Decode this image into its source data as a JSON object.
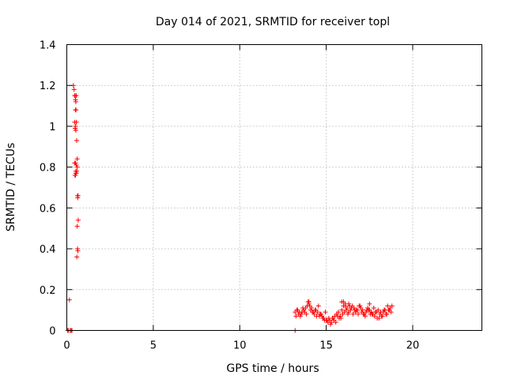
{
  "chart_data": {
    "type": "scatter",
    "title": "Day 014 of 2021, SRMTID for receiver topl",
    "xlabel": "GPS time / hours",
    "ylabel": "SRMTID / TECUs",
    "xlim": [
      0,
      24
    ],
    "ylim": [
      0,
      1.4
    ],
    "xticks": [
      0,
      5,
      10,
      15,
      20
    ],
    "yticks": [
      0,
      0.2,
      0.4,
      0.6,
      0.8,
      1,
      1.2,
      1.4
    ],
    "xtick_labels": [
      "0",
      "5",
      "10",
      "15",
      "20"
    ],
    "ytick_labels": [
      "0",
      "0.2",
      "0.4",
      "0.6",
      "0.8",
      "1",
      "1.2",
      "1.4"
    ],
    "grid": true,
    "marker": "+",
    "series": [
      {
        "name": "SRMTID",
        "color": "#ff0000",
        "x": [
          0.05,
          0.1,
          0.15,
          0.2,
          0.25,
          0.3,
          0.38,
          0.42,
          0.45,
          0.48,
          0.5,
          0.52,
          0.55,
          0.5,
          0.53,
          0.45,
          0.5,
          0.55,
          0.48,
          0.52,
          0.57,
          0.6,
          0.5,
          0.55,
          0.6,
          0.58,
          0.52,
          0.47,
          0.5,
          0.55,
          0.62,
          0.65,
          0.63,
          0.66,
          0.6,
          0.62,
          0.64,
          0.58,
          0.45,
          0.52,
          13.2,
          13.3,
          13.4,
          13.5,
          13.6,
          13.7,
          13.8,
          13.9,
          14.0,
          14.1,
          14.2,
          14.3,
          14.4,
          14.5,
          14.6,
          14.7,
          14.8,
          14.9,
          15.0,
          15.1,
          15.2,
          15.3,
          15.4,
          15.5,
          15.6,
          15.7,
          15.8,
          15.9,
          16.0,
          16.1,
          16.2,
          16.3,
          16.4,
          16.5,
          16.6,
          16.7,
          16.8,
          16.9,
          17.0,
          17.1,
          17.2,
          17.3,
          17.4,
          17.5,
          17.6,
          17.7,
          17.8,
          17.9,
          18.0,
          18.1,
          18.2,
          18.3,
          18.4,
          18.5,
          18.6,
          18.7,
          18.8,
          13.25,
          13.45,
          13.65,
          13.85,
          14.05,
          14.25,
          14.45,
          14.65,
          14.85,
          15.05,
          15.25,
          15.45,
          15.65,
          15.85,
          16.05,
          16.25,
          16.45,
          16.65,
          16.85,
          17.05,
          17.25,
          17.45,
          17.65,
          17.85,
          18.05,
          18.25,
          18.45,
          18.65,
          13.35,
          13.55,
          13.75,
          13.95,
          14.15,
          14.35,
          14.55,
          14.75,
          14.95,
          15.15,
          15.35,
          15.55,
          15.75,
          15.95,
          16.15,
          16.35,
          16.55,
          16.75,
          16.95,
          17.15,
          17.35,
          17.55,
          17.75,
          17.95,
          18.15,
          18.35,
          18.55,
          18.75,
          15.9,
          16.0,
          16.1,
          16.3,
          14.0,
          17.5,
          13.2
        ],
        "y": [
          0.0,
          0.0,
          0.15,
          0.0,
          0.0,
          0.0,
          1.2,
          1.18,
          1.15,
          1.15,
          1.13,
          1.12,
          1.15,
          1.08,
          1.08,
          1.02,
          1.0,
          1.02,
          0.99,
          0.98,
          0.93,
          0.84,
          0.82,
          0.81,
          0.8,
          0.78,
          0.77,
          0.76,
          0.76,
          0.77,
          0.66,
          0.66,
          0.65,
          0.54,
          0.51,
          0.4,
          0.39,
          0.36,
          0.82,
          0.78,
          0.09,
          0.1,
          0.08,
          0.07,
          0.09,
          0.1,
          0.11,
          0.12,
          0.13,
          0.1,
          0.09,
          0.08,
          0.1,
          0.09,
          0.07,
          0.08,
          0.06,
          0.05,
          0.05,
          0.04,
          0.05,
          0.04,
          0.06,
          0.07,
          0.08,
          0.09,
          0.07,
          0.1,
          0.12,
          0.13,
          0.11,
          0.09,
          0.1,
          0.12,
          0.11,
          0.09,
          0.1,
          0.12,
          0.11,
          0.1,
          0.08,
          0.09,
          0.11,
          0.1,
          0.09,
          0.08,
          0.07,
          0.09,
          0.1,
          0.08,
          0.07,
          0.09,
          0.1,
          0.08,
          0.1,
          0.11,
          0.12,
          0.07,
          0.09,
          0.11,
          0.08,
          0.12,
          0.09,
          0.07,
          0.08,
          0.06,
          0.05,
          0.03,
          0.05,
          0.07,
          0.06,
          0.09,
          0.08,
          0.11,
          0.1,
          0.08,
          0.09,
          0.07,
          0.1,
          0.08,
          0.09,
          0.06,
          0.07,
          0.08,
          0.1,
          0.1,
          0.08,
          0.09,
          0.14,
          0.11,
          0.1,
          0.12,
          0.07,
          0.09,
          0.06,
          0.06,
          0.04,
          0.06,
          0.08,
          0.1,
          0.12,
          0.08,
          0.1,
          0.12,
          0.08,
          0.1,
          0.08,
          0.11,
          0.06,
          0.09,
          0.1,
          0.12,
          0.09,
          0.14,
          0.14,
          0.12,
          0.13,
          0.14,
          0.13,
          0.0
        ]
      }
    ]
  }
}
